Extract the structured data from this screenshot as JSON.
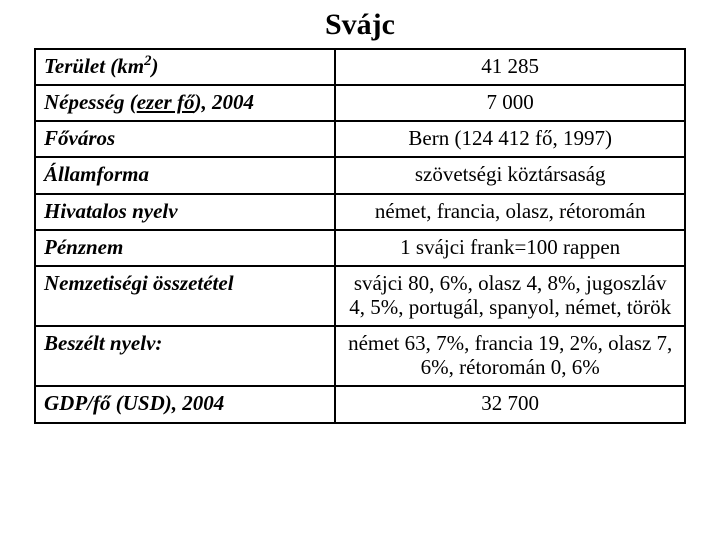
{
  "title": "Svájc",
  "table": {
    "columns_pct": [
      46,
      54
    ],
    "border_color": "#000000",
    "background_color": "#ffffff",
    "text_color": "#000000",
    "font_family": "Times New Roman",
    "label_fontsize": 21,
    "value_fontsize": 21,
    "rows": [
      {
        "label_pre": "Terület (km",
        "label_sup": "2",
        "label_post": ")",
        "value": "41 285"
      },
      {
        "label_pre": "Népesség (",
        "label_underline": "ezer fő",
        "label_post": "), 2004",
        "value": "7 000"
      },
      {
        "label": "Főváros",
        "value": "Bern (124 412 fő, 1997)"
      },
      {
        "label": "Államforma",
        "value": "szövetségi köztársaság"
      },
      {
        "label": "Hivatalos nyelv",
        "value": "német, francia, olasz, rétoromán"
      },
      {
        "label": "Pénznem",
        "value": "1 svájci frank=100 rappen"
      },
      {
        "label": "Nemzetiségi összetétel",
        "value": "svájci 80, 6%, olasz 4, 8%, jugoszláv 4, 5%, portugál, spanyol, német, török"
      },
      {
        "label": "Beszélt nyelv:",
        "value": "német 63, 7%, francia 19, 2%, olasz 7, 6%, rétoromán 0, 6%"
      },
      {
        "label": "GDP/fő (USD), 2004",
        "value": "32 700"
      }
    ]
  }
}
